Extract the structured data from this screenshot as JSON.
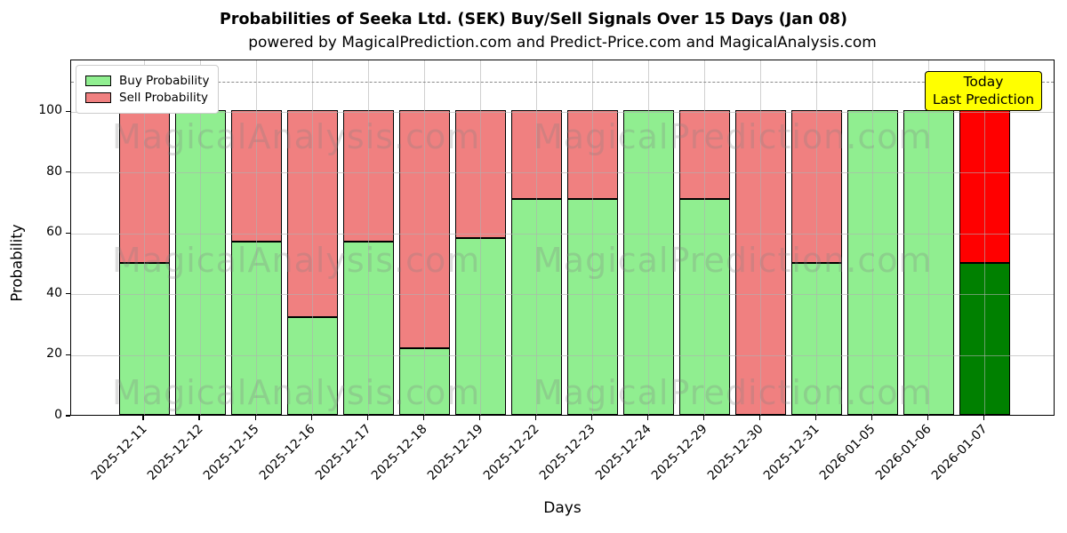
{
  "title": "Probabilities of Seeka Ltd. (SEK) Buy/Sell Signals Over 15 Days (Jan 08)",
  "subtitle": "powered by MagicalPrediction.com and Predict-Price.com and MagicalAnalysis.com",
  "annotation": {
    "line1": "Today",
    "line2": "Last Prediction"
  },
  "legend": {
    "items": [
      {
        "label": "Buy Probability",
        "color": "#90EE90"
      },
      {
        "label": "Sell Probability",
        "color": "#F08080"
      }
    ]
  },
  "watermarks": {
    "left": "MagicalAnalysis.com",
    "right": "MagicalPrediction.com",
    "rows": 3
  },
  "colors": {
    "buy": "#90EE90",
    "sell": "#F08080",
    "last_buy": "#008000",
    "last_sell": "#FF0000",
    "annotation_bg": "#FFFF00"
  },
  "chart_data": {
    "type": "bar",
    "stacked": true,
    "title": "Probabilities of Seeka Ltd. (SEK) Buy/Sell Signals Over 15 Days (Jan 08)",
    "xlabel": "Days",
    "ylabel": "Probability",
    "categories": [
      "2025-12-11",
      "2025-12-12",
      "2025-12-15",
      "2025-12-16",
      "2025-12-17",
      "2025-12-18",
      "2025-12-19",
      "2025-12-22",
      "2025-12-23",
      "2025-12-24",
      "2025-12-29",
      "2025-12-30",
      "2025-12-31",
      "2026-01-05",
      "2026-01-06",
      "2026-01-07"
    ],
    "series": [
      {
        "name": "Buy Probability",
        "values": [
          50,
          100,
          57,
          32,
          57,
          22,
          58,
          71,
          71,
          100,
          71,
          0,
          50,
          100,
          100,
          50
        ]
      },
      {
        "name": "Sell Probability",
        "values": [
          50,
          0,
          43,
          68,
          43,
          78,
          42,
          29,
          29,
          0,
          29,
          100,
          50,
          0,
          0,
          50
        ]
      }
    ],
    "highlight_last_bar": true,
    "yticks": [
      0,
      20,
      40,
      60,
      80,
      100
    ],
    "ylim": [
      0,
      117
    ],
    "dashed_line_y": 110,
    "grid": true,
    "legend_position": "upper-left"
  }
}
